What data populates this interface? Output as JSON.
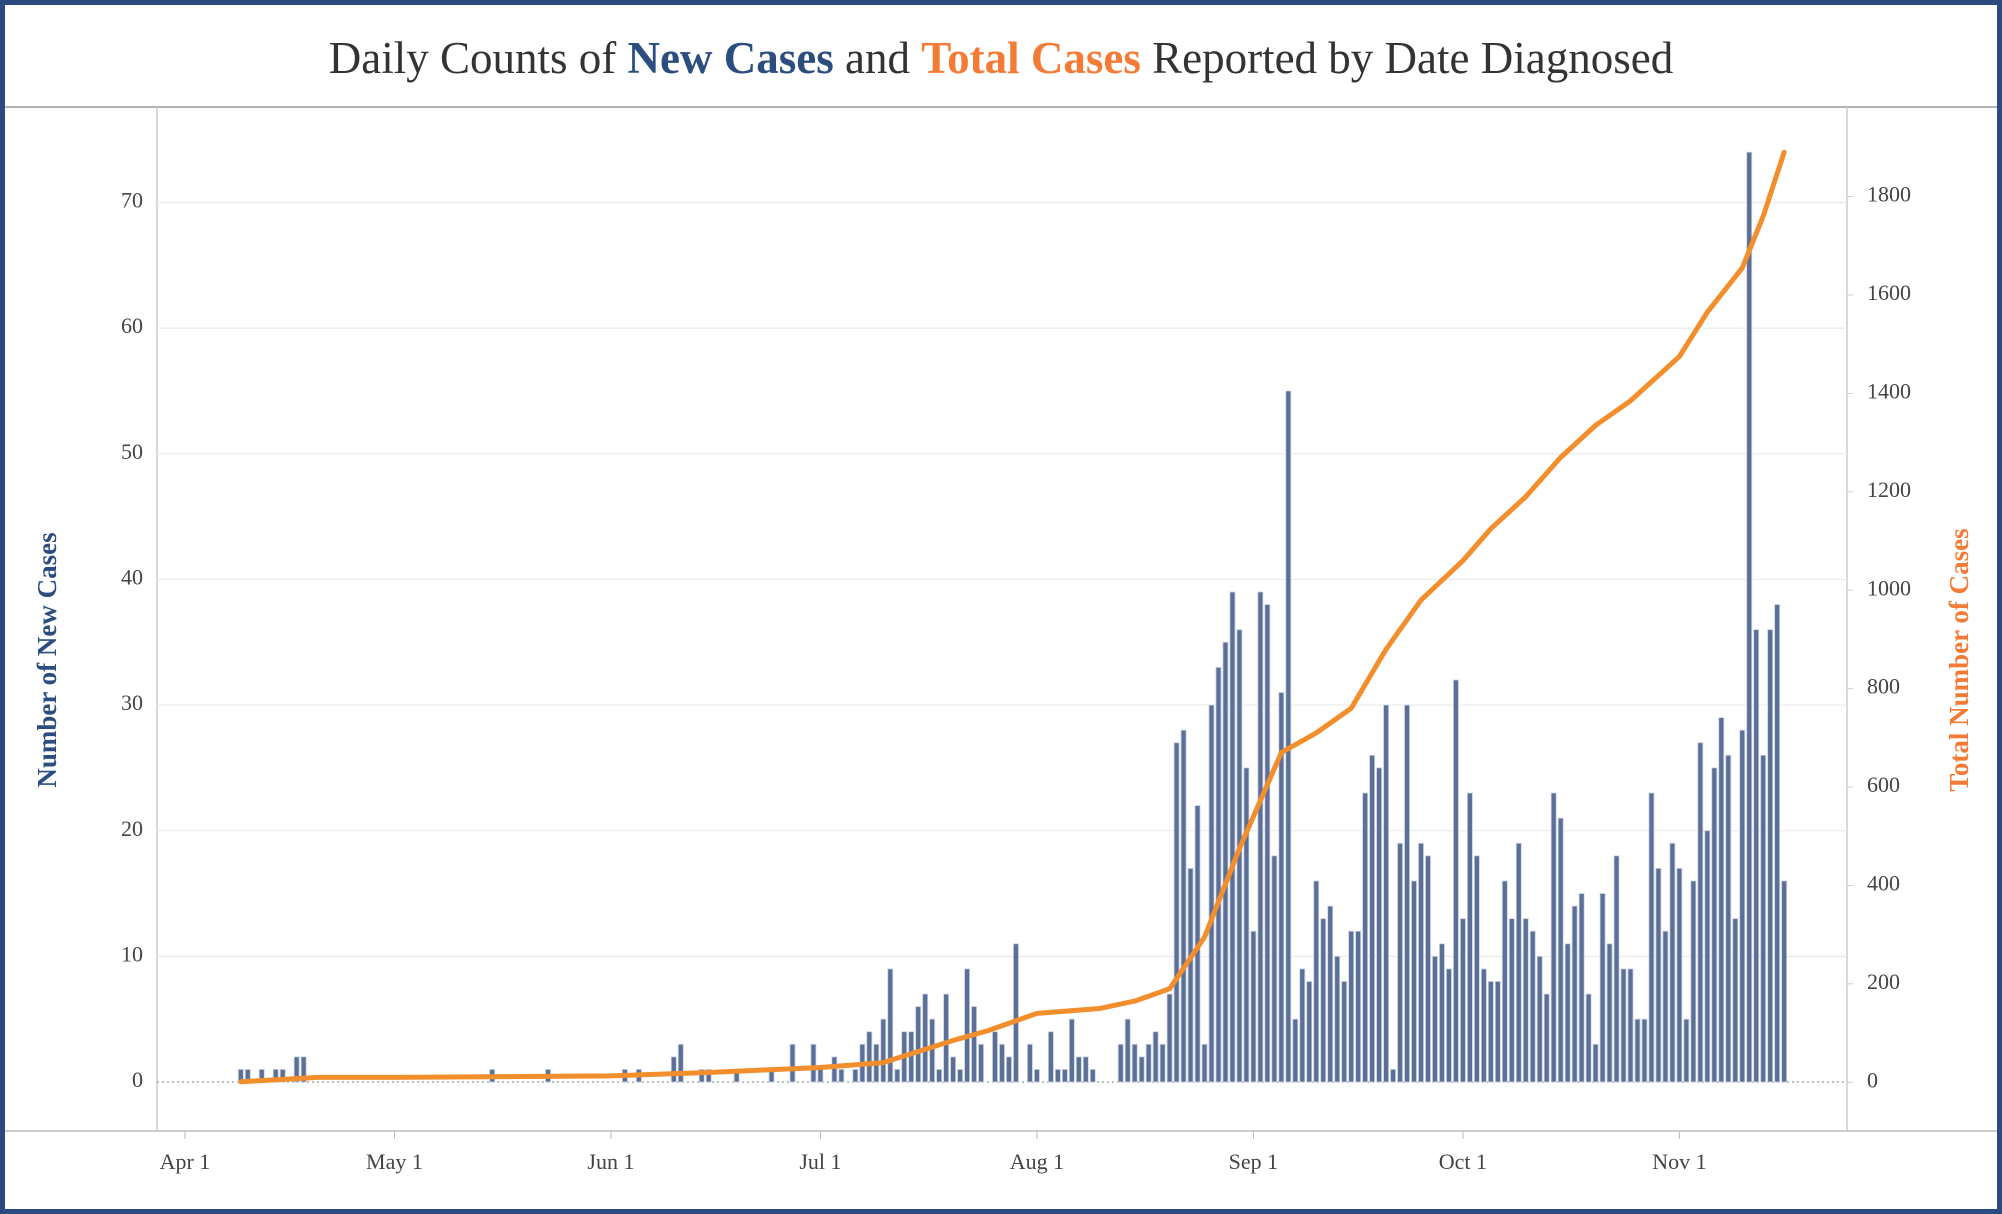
{
  "chart_data": {
    "type": "bar",
    "title_parts": [
      "Daily Counts of",
      "and",
      "Reported by Date Diagnosed"
    ],
    "y_label": "Number of New Cases",
    "y2_label": "Total Number of Cases",
    "xlim": [
      "Mar 28",
      "Nov 25"
    ],
    "xticks": [
      "Apr 1",
      "May 1",
      "Jun 1",
      "Jul 1",
      "Aug 1",
      "Sep 1",
      "Oct 1",
      "Nov 1"
    ],
    "ylim": [
      -3.9,
      77.6
    ],
    "yticks": [
      0,
      10,
      20,
      30,
      40,
      50,
      60,
      70
    ],
    "y2lim": [
      -99,
      1982
    ],
    "y2ticks": [
      0,
      200,
      400,
      600,
      800,
      1000,
      1200,
      1400,
      1600,
      1800
    ],
    "grid": true,
    "x": [
      "Apr 9",
      "Apr 10",
      "Apr 11",
      "Apr 12",
      "Apr 13",
      "Apr 14",
      "Apr 15",
      "Apr 16",
      "Apr 17",
      "Apr 18",
      "Apr 19",
      "Apr 20",
      "Apr 21",
      "Apr 22",
      "Apr 23",
      "Apr 24",
      "Apr 25",
      "Apr 26",
      "Apr 27",
      "Apr 28",
      "Apr 29",
      "Apr 30",
      "May 1",
      "May 2",
      "May 3",
      "May 4",
      "May 5",
      "May 6",
      "May 7",
      "May 8",
      "May 9",
      "May 10",
      "May 11",
      "May 12",
      "May 13",
      "May 14",
      "May 15",
      "May 16",
      "May 17",
      "May 18",
      "May 19",
      "May 20",
      "May 21",
      "May 22",
      "May 23",
      "May 24",
      "May 25",
      "May 26",
      "May 27",
      "May 28",
      "May 29",
      "May 30",
      "May 31",
      "Jun 1",
      "Jun 2",
      "Jun 3",
      "Jun 4",
      "Jun 5",
      "Jun 6",
      "Jun 7",
      "Jun 8",
      "Jun 9",
      "Jun 10",
      "Jun 11",
      "Jun 12",
      "Jun 13",
      "Jun 14",
      "Jun 15",
      "Jun 16",
      "Jun 17",
      "Jun 18",
      "Jun 19",
      "Jun 20",
      "Jun 21",
      "Jun 22",
      "Jun 23",
      "Jun 24",
      "Jun 25",
      "Jun 26",
      "Jun 27",
      "Jun 28",
      "Jun 29",
      "Jun 30",
      "Jul 1",
      "Jul 2",
      "Jul 3",
      "Jul 4",
      "Jul 5",
      "Jul 6",
      "Jul 7",
      "Jul 8",
      "Jul 9",
      "Jul 10",
      "Jul 11",
      "Jul 12",
      "Jul 13",
      "Jul 14",
      "Jul 15",
      "Jul 16",
      "Jul 17",
      "Jul 18",
      "Jul 19",
      "Jul 20",
      "Jul 21",
      "Jul 22",
      "Jul 23",
      "Jul 24",
      "Jul 25",
      "Jul 26",
      "Jul 27",
      "Jul 28",
      "Jul 29",
      "Jul 30",
      "Jul 31",
      "Aug 1",
      "Aug 2",
      "Aug 3",
      "Aug 4",
      "Aug 5",
      "Aug 6",
      "Aug 7",
      "Aug 8",
      "Aug 9",
      "Aug 10",
      "Aug 11",
      "Aug 12",
      "Aug 13",
      "Aug 14",
      "Aug 15",
      "Aug 16",
      "Aug 17",
      "Aug 18",
      "Aug 19",
      "Aug 20",
      "Aug 21",
      "Aug 22",
      "Aug 23",
      "Aug 24",
      "Aug 25",
      "Aug 26",
      "Aug 27",
      "Aug 28",
      "Aug 29",
      "Aug 30",
      "Aug 31",
      "Sep 1",
      "Sep 2",
      "Sep 3",
      "Sep 4",
      "Sep 5",
      "Sep 6",
      "Sep 7",
      "Sep 8",
      "Sep 9",
      "Sep 10",
      "Sep 11",
      "Sep 12",
      "Sep 13",
      "Sep 14",
      "Sep 15",
      "Sep 16",
      "Sep 17",
      "Sep 18",
      "Sep 19",
      "Sep 20",
      "Sep 21",
      "Sep 22",
      "Sep 23",
      "Sep 24",
      "Sep 25",
      "Sep 26",
      "Sep 27",
      "Sep 28",
      "Sep 29",
      "Sep 30",
      "Oct 1",
      "Oct 2",
      "Oct 3",
      "Oct 4",
      "Oct 5",
      "Oct 6",
      "Oct 7",
      "Oct 8",
      "Oct 9",
      "Oct 10",
      "Oct 11",
      "Oct 12",
      "Oct 13",
      "Oct 14",
      "Oct 15",
      "Oct 16",
      "Oct 17",
      "Oct 18",
      "Oct 19",
      "Oct 20",
      "Oct 21",
      "Oct 22",
      "Oct 23",
      "Oct 24",
      "Oct 25",
      "Oct 26",
      "Oct 27",
      "Oct 28",
      "Oct 29",
      "Oct 30",
      "Oct 31",
      "Nov 1",
      "Nov 2",
      "Nov 3",
      "Nov 4",
      "Nov 5",
      "Nov 6",
      "Nov 7",
      "Nov 8",
      "Nov 9",
      "Nov 10",
      "Nov 11",
      "Nov 12",
      "Nov 13",
      "Nov 14",
      "Nov 15",
      "Nov 16"
    ],
    "series": [
      {
        "name": "New Cases",
        "color": "#5b6f97",
        "values": [
          1,
          1,
          0,
          1,
          0,
          1,
          1,
          0,
          2,
          2,
          0,
          0,
          0,
          0,
          0,
          0,
          0,
          0,
          0,
          0,
          0,
          0,
          0,
          0,
          0,
          0,
          0,
          0,
          0,
          0,
          0,
          0,
          0,
          0,
          0,
          0,
          1,
          0,
          0,
          0,
          0,
          0,
          0,
          0,
          1,
          0,
          0,
          0,
          0,
          0,
          0,
          0,
          0,
          0,
          0,
          1,
          0,
          1,
          0,
          0,
          0,
          0,
          2,
          3,
          0,
          0,
          1,
          1,
          0,
          0,
          0,
          1,
          0,
          0,
          0,
          0,
          1,
          0,
          0,
          3,
          0,
          0,
          3,
          1,
          0,
          2,
          1,
          0,
          1,
          3,
          4,
          3,
          5,
          9,
          1,
          4,
          4,
          6,
          7,
          5,
          1,
          7,
          2,
          1,
          9,
          6,
          3,
          0,
          4,
          3,
          2,
          11,
          0,
          3,
          1,
          0,
          4,
          1,
          1,
          5,
          2,
          2,
          1,
          0,
          0,
          0,
          3,
          5,
          3,
          2,
          3,
          4,
          3,
          7,
          27,
          28,
          17,
          22,
          3,
          30,
          33,
          35,
          39,
          36,
          25,
          12,
          39,
          38,
          18,
          31,
          55,
          5,
          9,
          8,
          16,
          13,
          14,
          10,
          8,
          12,
          12,
          23,
          26,
          25,
          30,
          1,
          19,
          30,
          16,
          19,
          18,
          10,
          11,
          9,
          32,
          13,
          23,
          18,
          9,
          8,
          8,
          16,
          13,
          19,
          13,
          12,
          10,
          7,
          23,
          21,
          11,
          14,
          15,
          7,
          3,
          15,
          11,
          18,
          9,
          9,
          5,
          5,
          23,
          17,
          12,
          19,
          17,
          5,
          16,
          27,
          20,
          25,
          29,
          26,
          13,
          28,
          74,
          36,
          26,
          36,
          38,
          16
        ]
      },
      {
        "name": "Total Cases",
        "color": "#f28e2b",
        "axis": "y2",
        "x": [
          "Apr 9",
          "Apr 20",
          "May 1",
          "Jun 1",
          "Jun 15",
          "Jul 1",
          "Jul 10",
          "Jul 20",
          "Jul 25",
          "Aug 1",
          "Aug 10",
          "Aug 15",
          "Aug 20",
          "Aug 25",
          "Aug 30",
          "Sep 5",
          "Sep 10",
          "Sep 15",
          "Sep 20",
          "Sep 25",
          "Oct 1",
          "Oct 5",
          "Oct 10",
          "Oct 15",
          "Oct 20",
          "Oct 25",
          "Nov 1",
          "Nov 5",
          "Nov 10",
          "Nov 13",
          "Nov 16"
        ],
        "values": [
          1,
          10,
          10,
          13,
          20,
          30,
          40,
          85,
          105,
          140,
          150,
          165,
          190,
          295,
          475,
          670,
          710,
          760,
          880,
          980,
          1060,
          1125,
          1190,
          1270,
          1335,
          1385,
          1475,
          1565,
          1655,
          1760,
          1890
        ]
      }
    ]
  }
}
